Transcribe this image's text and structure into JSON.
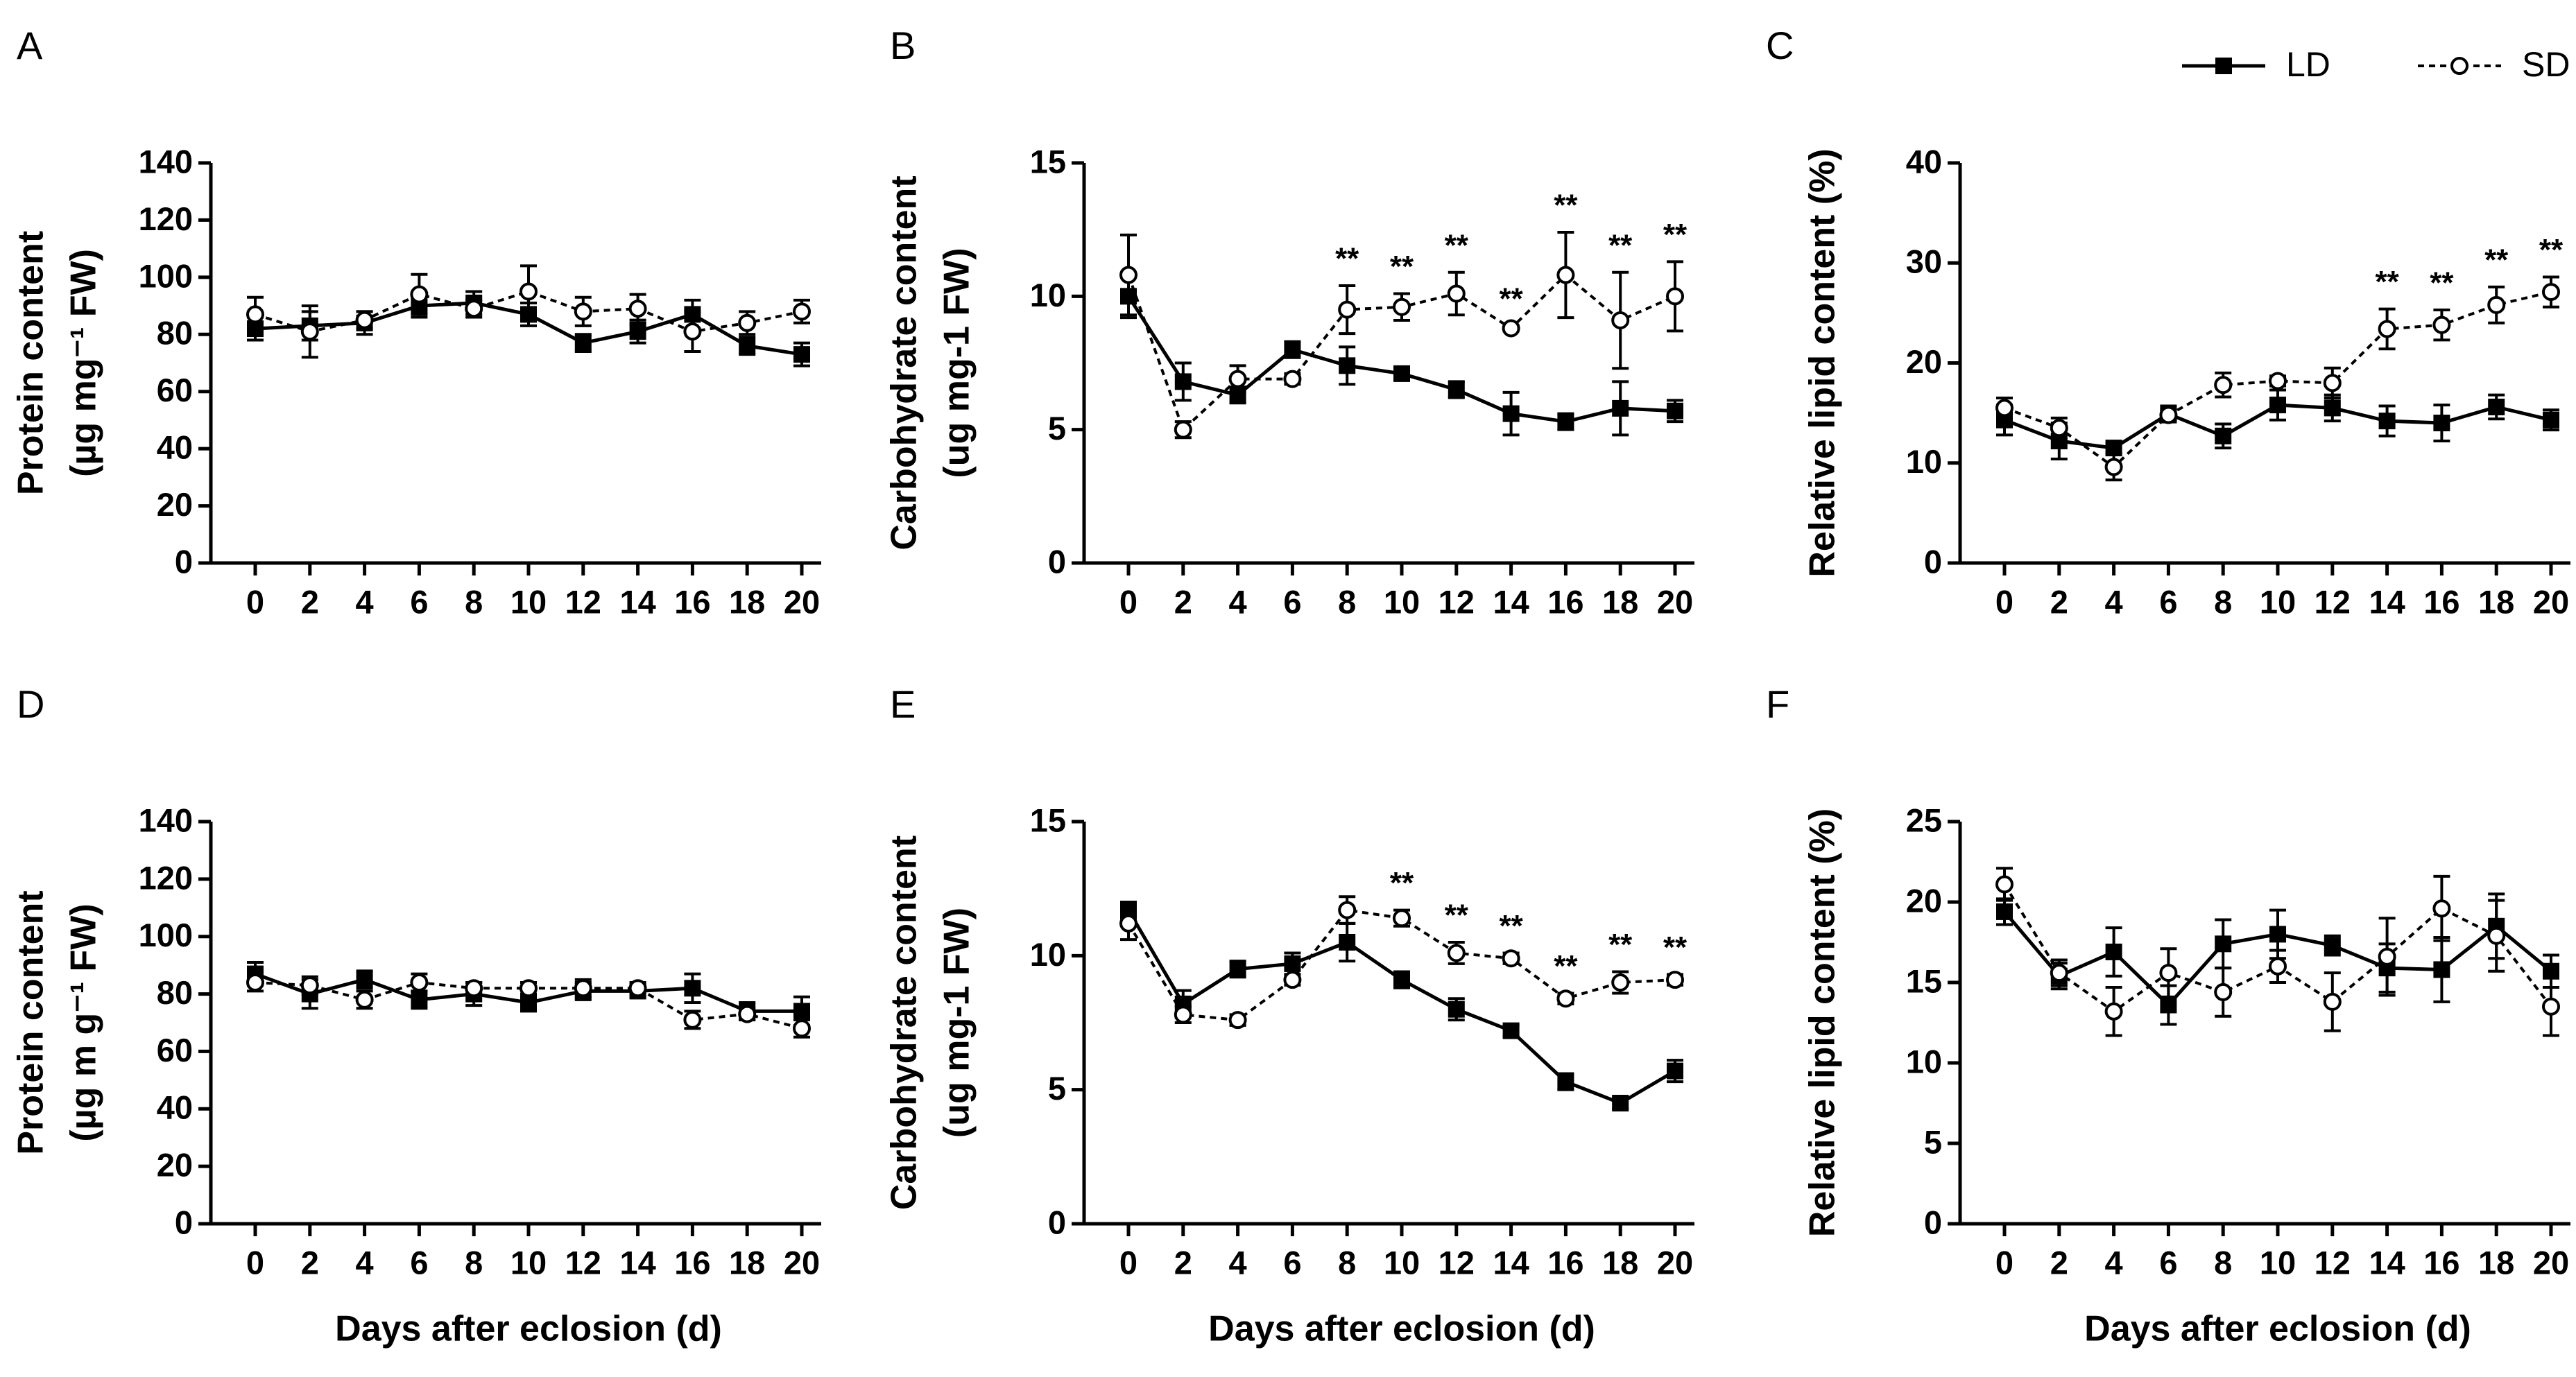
{
  "chart_data": [
    {
      "type": "line",
      "panel": "A",
      "y_label": [
        "Protein content",
        "(µg mg⁻¹ FW)"
      ],
      "x": [
        0,
        2,
        4,
        6,
        8,
        10,
        12,
        14,
        16,
        18,
        20
      ],
      "xticks": [
        0,
        2,
        4,
        6,
        8,
        10,
        12,
        14,
        16,
        18,
        20
      ],
      "ylim": [
        0,
        140
      ],
      "yticks": [
        0,
        20,
        40,
        60,
        80,
        100,
        120,
        140
      ],
      "series": [
        {
          "color": "#000000",
          "marker": "square",
          "dashed": false,
          "values": [
            82,
            83,
            84,
            90,
            91,
            87,
            77,
            81,
            87,
            76,
            73
          ],
          "errors": [
            4,
            5,
            4,
            4,
            4,
            4,
            3,
            4,
            5,
            3,
            4
          ]
        },
        {
          "color": "#000000",
          "marker": "circle",
          "dashed": true,
          "values": [
            87,
            81,
            85,
            94,
            89,
            95,
            88,
            89,
            81,
            84,
            88
          ],
          "errors": [
            6,
            9,
            3,
            7,
            3,
            9,
            5,
            5,
            7,
            4,
            4
          ]
        }
      ]
    },
    {
      "type": "line",
      "panel": "B",
      "y_label": [
        "Carbohydrate content",
        "(ug mg-1 FW)"
      ],
      "x": [
        0,
        2,
        4,
        6,
        8,
        10,
        12,
        14,
        16,
        18,
        20
      ],
      "xticks": [
        0,
        2,
        4,
        6,
        8,
        10,
        12,
        14,
        16,
        18,
        20
      ],
      "ylim": [
        0,
        15
      ],
      "yticks": [
        0,
        5,
        10,
        15
      ],
      "significance": [
        null,
        null,
        null,
        null,
        "**",
        "**",
        "**",
        "**",
        "**",
        "**",
        "**"
      ],
      "series": [
        {
          "color": "#000000",
          "marker": "square",
          "dashed": false,
          "values": [
            10,
            6.8,
            6.3,
            8,
            7.4,
            7.1,
            6.5,
            5.6,
            5.3,
            5.8,
            5.7
          ],
          "errors": [
            0.8,
            0.7,
            0.3,
            0.3,
            0.7,
            0.2,
            0.3,
            0.8,
            0.3,
            1,
            0.4
          ]
        },
        {
          "color": "#000000",
          "marker": "circle",
          "dashed": true,
          "values": [
            10.8,
            5,
            6.9,
            6.9,
            9.5,
            9.6,
            10.1,
            8.8,
            10.8,
            9.1,
            10
          ],
          "errors": [
            1.5,
            0.3,
            0.5,
            0.2,
            0.9,
            0.5,
            0.8,
            0.1,
            1.6,
            1.8,
            1.3
          ]
        }
      ]
    },
    {
      "type": "line",
      "panel": "C",
      "y_label": [
        "Relative  lipid content (%)"
      ],
      "x": [
        0,
        2,
        4,
        6,
        8,
        10,
        12,
        14,
        16,
        18,
        20
      ],
      "xticks": [
        0,
        2,
        4,
        6,
        8,
        10,
        12,
        14,
        16,
        18,
        20
      ],
      "ylim": [
        0,
        40
      ],
      "yticks": [
        0,
        10,
        20,
        30,
        40
      ],
      "legend": "upper right",
      "significance": [
        null,
        null,
        null,
        null,
        null,
        null,
        null,
        "**",
        "**",
        "**",
        "**"
      ],
      "series": [
        {
          "name": "LD",
          "color": "#000000",
          "marker": "square",
          "dashed": false,
          "values": [
            14.3,
            12.2,
            11.5,
            14.9,
            12.7,
            15.8,
            15.5,
            14.2,
            14,
            15.6,
            14.3
          ],
          "errors": [
            1.5,
            1.8,
            0.5,
            0.8,
            1.2,
            1.5,
            1.3,
            1.5,
            1.8,
            1.2,
            1
          ]
        },
        {
          "name": "SD",
          "color": "#000000",
          "marker": "circle",
          "dashed": true,
          "values": [
            15.5,
            13.5,
            9.6,
            14.8,
            17.8,
            18.2,
            18,
            23.4,
            23.8,
            25.8,
            27.1
          ],
          "errors": [
            1,
            1,
            1.3,
            0.5,
            1.2,
            0.5,
            1.5,
            2,
            1.5,
            1.8,
            1.5
          ]
        }
      ]
    },
    {
      "type": "line",
      "panel": "D",
      "y_label": [
        "Protein content",
        "(µg m g⁻¹ FW)"
      ],
      "x_label": "Days after eclosion (d)",
      "x": [
        0,
        2,
        4,
        6,
        8,
        10,
        12,
        14,
        16,
        18,
        20
      ],
      "xticks": [
        0,
        2,
        4,
        6,
        8,
        10,
        12,
        14,
        16,
        18,
        20
      ],
      "ylim": [
        0,
        140
      ],
      "yticks": [
        0,
        20,
        40,
        60,
        80,
        100,
        120,
        140
      ],
      "series": [
        {
          "color": "#000000",
          "marker": "square",
          "dashed": false,
          "values": [
            87,
            80,
            85,
            78,
            80,
            77,
            81,
            81,
            82,
            74,
            74
          ],
          "errors": [
            4,
            5,
            3,
            3,
            4,
            3,
            3,
            2,
            5,
            3,
            5
          ]
        },
        {
          "color": "#000000",
          "marker": "circle",
          "dashed": true,
          "values": [
            84,
            83,
            78,
            84,
            82,
            82,
            82,
            82,
            71,
            73,
            68
          ],
          "errors": [
            3,
            3,
            3,
            3,
            2,
            2,
            3,
            2,
            3,
            2,
            3
          ]
        }
      ]
    },
    {
      "type": "line",
      "panel": "E",
      "y_label": [
        "Carbohydrate content",
        "(ug mg-1 FW)"
      ],
      "x_label": "Days after eclosion (d)",
      "x": [
        0,
        2,
        4,
        6,
        8,
        10,
        12,
        14,
        16,
        18,
        20
      ],
      "xticks": [
        0,
        2,
        4,
        6,
        8,
        10,
        12,
        14,
        16,
        18,
        20
      ],
      "ylim": [
        0,
        15
      ],
      "yticks": [
        0,
        5,
        10,
        15
      ],
      "significance": [
        null,
        null,
        null,
        null,
        null,
        "**",
        "**",
        "**",
        "**",
        "**",
        "**"
      ],
      "series": [
        {
          "color": "#000000",
          "marker": "square",
          "dashed": false,
          "values": [
            11.7,
            8.2,
            9.5,
            9.7,
            10.5,
            9.1,
            8,
            7.2,
            5.3,
            4.5,
            5.7
          ],
          "errors": [
            0.3,
            0.5,
            0.3,
            0.4,
            0.7,
            0.3,
            0.4,
            0.2,
            0.3,
            0.2,
            0.4
          ]
        },
        {
          "color": "#000000",
          "marker": "circle",
          "dashed": true,
          "values": [
            11.2,
            7.8,
            7.6,
            9.1,
            11.7,
            11.4,
            10.1,
            9.9,
            8.4,
            9,
            9.1
          ],
          "errors": [
            0.6,
            0.3,
            0.2,
            0.2,
            0.5,
            0.3,
            0.4,
            0.2,
            0.2,
            0.4,
            0.2
          ]
        }
      ]
    },
    {
      "type": "line",
      "panel": "F",
      "y_label": [
        "Relative  lipid content (%)"
      ],
      "x_label": "Days after eclosion (d)",
      "x": [
        0,
        2,
        4,
        6,
        8,
        10,
        12,
        14,
        16,
        18,
        20
      ],
      "xticks": [
        0,
        2,
        4,
        6,
        8,
        10,
        12,
        14,
        16,
        18,
        20
      ],
      "ylim": [
        0,
        25
      ],
      "yticks": [
        0,
        5,
        10,
        15,
        20,
        25
      ],
      "series": [
        {
          "color": "#000000",
          "marker": "square",
          "dashed": false,
          "values": [
            19.4,
            15.4,
            16.9,
            13.6,
            17.4,
            18,
            17.3,
            15.9,
            15.8,
            18.5,
            15.7
          ],
          "errors": [
            0.8,
            0.8,
            1.5,
            1.2,
            1.5,
            1.5,
            0.6,
            1.5,
            2,
            2,
            1
          ]
        },
        {
          "color": "#000000",
          "marker": "circle",
          "dashed": true,
          "values": [
            21.1,
            15.6,
            13.2,
            15.6,
            14.4,
            16,
            13.8,
            16.6,
            19.6,
            17.9,
            13.5
          ],
          "errors": [
            1,
            0.8,
            1.5,
            1.5,
            1.5,
            1,
            1.8,
            2.4,
            2,
            2.2,
            1.8
          ]
        }
      ]
    }
  ]
}
